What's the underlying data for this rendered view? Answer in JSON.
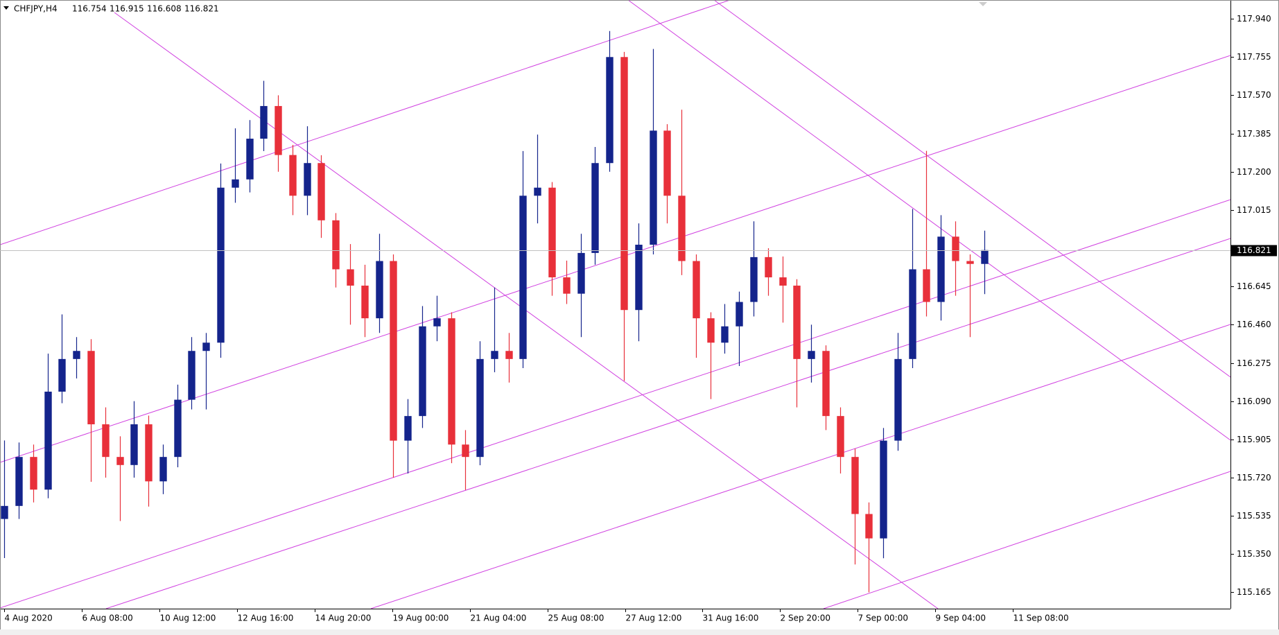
{
  "chart_data": {
    "type": "candlestick",
    "symbol": "CHFJPY,H4",
    "up_color": "#14248c",
    "down_color": "#e8303a",
    "trendline_color": "#d040e0",
    "price_line_color": "#c0c0c0",
    "open": [
      115.52,
      115.583,
      115.82,
      115.662,
      116.136,
      116.294,
      116.333,
      115.978,
      115.82,
      115.781,
      115.978,
      115.702,
      115.82,
      116.097,
      116.333,
      116.373,
      117.123,
      117.163,
      117.36,
      117.518,
      117.281,
      117.084,
      117.242,
      116.965,
      116.728,
      116.649,
      116.491,
      116.768,
      115.899,
      116.018,
      116.452,
      116.491,
      115.88,
      115.82,
      116.294,
      116.333,
      116.294,
      117.084,
      117.123,
      116.689,
      116.61,
      116.807,
      117.242,
      117.755,
      116.531,
      116.847,
      117.399,
      117.084,
      116.768,
      116.491,
      116.373,
      116.452,
      116.57,
      116.787,
      116.689,
      116.649,
      116.294,
      116.333,
      116.018,
      115.82,
      115.544,
      115.426,
      115.899,
      116.294,
      116.728,
      116.57,
      116.886,
      116.768,
      116.754
    ],
    "high": [
      115.9,
      115.89,
      115.88,
      116.32,
      116.51,
      116.4,
      116.39,
      116.06,
      115.92,
      116.09,
      116.02,
      115.88,
      116.17,
      116.4,
      116.42,
      117.24,
      117.41,
      117.45,
      117.64,
      117.57,
      117.33,
      117.42,
      117.28,
      117.0,
      116.85,
      116.75,
      116.9,
      116.8,
      116.1,
      116.55,
      116.6,
      116.52,
      115.95,
      116.38,
      116.64,
      116.42,
      117.3,
      117.38,
      117.15,
      116.77,
      116.9,
      117.32,
      117.881,
      117.78,
      116.95,
      117.794,
      117.43,
      117.5,
      116.8,
      116.52,
      116.56,
      116.62,
      116.96,
      116.83,
      116.79,
      116.68,
      116.46,
      116.36,
      116.06,
      115.86,
      115.6,
      115.96,
      116.42,
      117.02,
      117.301,
      116.99,
      116.96,
      116.8,
      116.915
    ],
    "low": [
      115.331,
      115.52,
      115.6,
      115.62,
      116.08,
      116.2,
      115.7,
      115.72,
      115.51,
      115.72,
      115.58,
      115.64,
      115.77,
      116.05,
      116.05,
      116.3,
      117.05,
      117.1,
      117.3,
      117.2,
      116.99,
      116.99,
      116.88,
      116.64,
      116.46,
      116.4,
      116.42,
      115.72,
      115.74,
      115.96,
      116.38,
      115.79,
      115.66,
      115.78,
      116.23,
      116.18,
      116.25,
      116.95,
      116.6,
      116.56,
      116.4,
      116.75,
      117.2,
      116.188,
      116.38,
      116.8,
      116.95,
      116.7,
      116.3,
      116.1,
      116.32,
      116.26,
      116.5,
      116.6,
      116.47,
      116.06,
      116.18,
      115.95,
      115.74,
      115.3,
      115.165,
      115.33,
      115.85,
      116.25,
      116.5,
      116.48,
      116.6,
      116.4,
      116.608
    ],
    "close": [
      115.583,
      115.82,
      115.662,
      116.136,
      116.294,
      116.333,
      115.978,
      115.82,
      115.781,
      115.978,
      115.702,
      115.82,
      116.097,
      116.333,
      116.373,
      117.123,
      117.163,
      117.36,
      117.518,
      117.281,
      117.084,
      117.242,
      116.965,
      116.728,
      116.649,
      116.491,
      116.768,
      115.899,
      116.018,
      116.452,
      116.491,
      115.88,
      115.82,
      116.294,
      116.333,
      116.294,
      117.084,
      117.123,
      116.689,
      116.61,
      116.807,
      117.242,
      117.755,
      116.531,
      116.847,
      117.399,
      117.084,
      116.768,
      116.491,
      116.373,
      116.452,
      116.57,
      116.787,
      116.689,
      116.649,
      116.294,
      116.333,
      116.018,
      115.82,
      115.544,
      115.426,
      115.899,
      116.294,
      116.728,
      116.57,
      116.886,
      116.768,
      116.754,
      116.821
    ],
    "xlim": [
      -0.3,
      85.1
    ],
    "xticks": [
      {
        "value": 0,
        "label": "4 Aug 2020"
      },
      {
        "value": 5.38,
        "label": "6 Aug 08:00"
      },
      {
        "value": 10.77,
        "label": "10 Aug 12:00"
      },
      {
        "value": 16.15,
        "label": "12 Aug 16:00"
      },
      {
        "value": 21.54,
        "label": "14 Aug 20:00"
      },
      {
        "value": 26.92,
        "label": "19 Aug 00:00"
      },
      {
        "value": 32.31,
        "label": "21 Aug 04:00"
      },
      {
        "value": 37.69,
        "label": "25 Aug 08:00"
      },
      {
        "value": 43.08,
        "label": "27 Aug 12:00"
      },
      {
        "value": 48.46,
        "label": "31 Aug 16:00"
      },
      {
        "value": 53.85,
        "label": "2 Sep 20:00"
      },
      {
        "value": 59.23,
        "label": "7 Sep 00:00"
      },
      {
        "value": 64.62,
        "label": "9 Sep 04:00"
      },
      {
        "value": 70,
        "label": "11 Sep 08:00"
      }
    ],
    "ylim": [
      115.086,
      118.031
    ],
    "yticks": [
      115.165,
      {
        "value": 115.35,
        "label": "115.350"
      },
      115.535,
      {
        "value": 115.72,
        "label": "115.720"
      },
      115.905,
      {
        "value": 116.09,
        "label": "116.090"
      },
      116.275,
      {
        "value": 116.46,
        "label": "116.460"
      },
      116.645,
      117.015,
      {
        "value": 117.2,
        "label": "117.200"
      },
      117.385,
      {
        "value": 117.57,
        "label": "117.570"
      },
      117.755,
      {
        "value": 117.94,
        "label": "117.940"
      }
    ]
  }
}
